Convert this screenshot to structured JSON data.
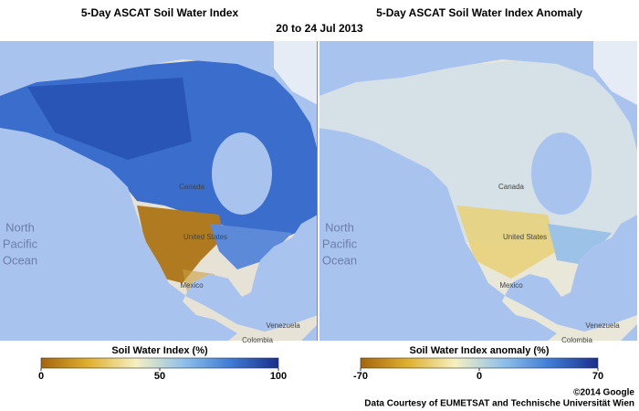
{
  "title": "20 to 24 Jul 2013",
  "panels": [
    {
      "title": "5-Day ASCAT Soil Water Index",
      "labels": [
        "North",
        "Pacific",
        "Ocean",
        "Canada",
        "United States",
        "Mexico",
        "Venezuela",
        "Colombia"
      ],
      "colorbar": {
        "label": "Soil Water Index (%)",
        "lim": [
          0,
          100
        ],
        "ticks": [
          0,
          50,
          100
        ],
        "colors": [
          "#a5650c",
          "#e0b030",
          "#f5f0c0",
          "#8fc0ea",
          "#3f7ad4",
          "#1a2f8a"
        ]
      }
    },
    {
      "title": "5-Day ASCAT Soil Water Index Anomaly",
      "labels": [
        "North",
        "Pacific",
        "Ocean",
        "Canada",
        "United States",
        "Mexico",
        "Venezuela",
        "Colombia"
      ],
      "colorbar": {
        "label": "Soil Water Index anomaly (%)",
        "lim": [
          -70,
          70
        ],
        "ticks": [
          -70,
          0,
          70
        ],
        "colors": [
          "#a5650c",
          "#e0b030",
          "#f5f0c0",
          "#8fc0ea",
          "#3f7ad4",
          "#1a2f8a"
        ]
      }
    }
  ],
  "credits": [
    "©2014 Google",
    "Data Courtesy of EUMETSAT and Technische Universität Wien"
  ]
}
